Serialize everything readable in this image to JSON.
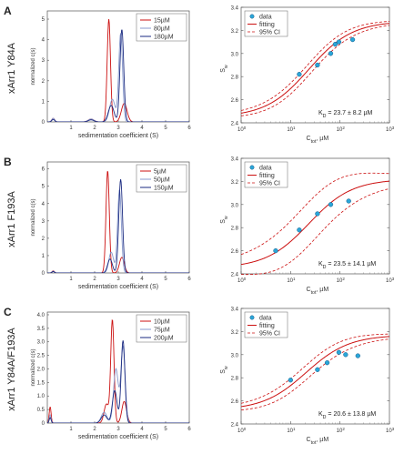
{
  "panels": [
    {
      "letter": "A",
      "mutant_label": "xArr1 Y84A",
      "c_s": {
        "ylabel": "normalized c(s)",
        "xlabel": "sedimentation coefficient (S)",
        "x_ticks": [
          "1",
          "2",
          "3",
          "4",
          "5",
          "6"
        ],
        "y_ticks": [
          "0",
          "1",
          "2",
          "3",
          "4",
          "5"
        ],
        "xlim": [
          0,
          6
        ],
        "ylim": [
          0,
          5.4
        ],
        "legend": [
          "15µM",
          "80µM",
          "180µM"
        ],
        "series": [
          {
            "name": "15µM",
            "color": "#cc1111",
            "peaks": [
              [
                0.25,
                0.18,
                0.06
              ],
              [
                1.85,
                0.14,
                0.12
              ],
              [
                2.6,
                5.0,
                0.07
              ],
              [
                3.25,
                0.9,
                0.12
              ]
            ]
          },
          {
            "name": "80µM",
            "color": "#8899cc",
            "peaks": [
              [
                0.25,
                0.18,
                0.06
              ],
              [
                1.85,
                0.14,
                0.12
              ],
              [
                2.75,
                1.1,
                0.12
              ],
              [
                3.1,
                4.3,
                0.08
              ]
            ]
          },
          {
            "name": "180µM",
            "color": "#1a2a80",
            "peaks": [
              [
                0.25,
                0.12,
                0.06
              ],
              [
                1.85,
                0.1,
                0.12
              ],
              [
                2.7,
                0.8,
                0.12
              ],
              [
                3.15,
                4.5,
                0.08
              ]
            ]
          }
        ]
      },
      "sw": {
        "ylabel": "S_w",
        "xlabel": "C_tot, µM",
        "y_ticks": [
          "2.4",
          "2.6",
          "2.8",
          "3.0",
          "3.2",
          "3.4"
        ],
        "x_ticks": [
          "10",
          "10",
          "10",
          "10"
        ],
        "x_exps": [
          "0",
          "1",
          "2",
          "3"
        ],
        "ylim": [
          2.4,
          3.4
        ],
        "legend": [
          "data",
          "fitting",
          "95% CI"
        ],
        "annotation": "K_D = 23.7 ± 8.2 µM",
        "fit": {
          "low": 2.45,
          "high": 3.28,
          "kd": 23.7,
          "ci_spread": 0.04
        },
        "points": [
          [
            15,
            2.82
          ],
          [
            35,
            2.9
          ],
          [
            65,
            3.0
          ],
          [
            80,
            3.08
          ],
          [
            95,
            3.1
          ],
          [
            180,
            3.12
          ]
        ]
      }
    },
    {
      "letter": "B",
      "mutant_label": "xArr1 F193A",
      "c_s": {
        "ylabel": "normalized c(s)",
        "xlabel": "sedimentation coefficient (S)",
        "x_ticks": [
          "1",
          "2",
          "3",
          "4",
          "5",
          "6"
        ],
        "y_ticks": [
          "0",
          "1",
          "2",
          "3",
          "4",
          "5",
          "6"
        ],
        "xlim": [
          0,
          6
        ],
        "ylim": [
          0,
          6.4
        ],
        "legend": [
          "5µM",
          "50µM",
          "150µM"
        ],
        "series": [
          {
            "name": "5µM",
            "color": "#cc1111",
            "peaks": [
              [
                0.25,
                0.12,
                0.05
              ],
              [
                2.55,
                5.9,
                0.07
              ],
              [
                3.15,
                0.9,
                0.1
              ]
            ]
          },
          {
            "name": "50µM",
            "color": "#8899cc",
            "peaks": [
              [
                0.25,
                0.1,
                0.05
              ],
              [
                2.7,
                1.2,
                0.1
              ],
              [
                3.05,
                4.8,
                0.08
              ]
            ]
          },
          {
            "name": "150µM",
            "color": "#1a2a80",
            "peaks": [
              [
                0.25,
                0.08,
                0.05
              ],
              [
                2.65,
                0.8,
                0.1
              ],
              [
                3.1,
                5.4,
                0.08
              ]
            ]
          }
        ]
      },
      "sw": {
        "ylabel": "S_w",
        "xlabel": "C_tot, µM",
        "y_ticks": [
          "2.4",
          "2.6",
          "2.8",
          "3.0",
          "3.2",
          "3.4"
        ],
        "x_ticks": [
          "10",
          "10",
          "10",
          "10"
        ],
        "x_exps": [
          "0",
          "1",
          "2",
          "3"
        ],
        "ylim": [
          2.4,
          3.4
        ],
        "legend": [
          "data",
          "fitting",
          "95% CI"
        ],
        "annotation": "K_D = 23.5 ± 14.1 µM",
        "fit": {
          "low": 2.45,
          "high": 3.22,
          "kd": 23.5,
          "ci_spread": 0.15
        },
        "points": [
          [
            5,
            2.6
          ],
          [
            15,
            2.78
          ],
          [
            35,
            2.92
          ],
          [
            65,
            3.0
          ],
          [
            150,
            3.03
          ]
        ]
      }
    },
    {
      "letter": "C",
      "mutant_label": "xArr1 Y84A/F193A",
      "c_s": {
        "ylabel": "normalized c(s)",
        "xlabel": "sedimentation coefficient (S)",
        "x_ticks": [
          "1",
          "2",
          "3",
          "4",
          "5",
          "6"
        ],
        "y_ticks": [
          "0",
          "0.5",
          "1.0",
          "1.5",
          "2.0",
          "2.5",
          "3.0",
          "3.5",
          "4.0"
        ],
        "xlim": [
          0,
          6
        ],
        "ylim": [
          0,
          4.1
        ],
        "legend": [
          "10µM",
          "75µM",
          "200µM"
        ],
        "series": [
          {
            "name": "10µM",
            "color": "#cc1111",
            "peaks": [
              [
                0.12,
                0.6,
                0.04
              ],
              [
                2.5,
                0.7,
                0.1
              ],
              [
                2.75,
                3.8,
                0.07
              ],
              [
                3.25,
                0.8,
                0.1
              ]
            ]
          },
          {
            "name": "75µM",
            "color": "#8899cc",
            "peaks": [
              [
                0.12,
                0.3,
                0.04
              ],
              [
                2.4,
                0.4,
                0.12
              ],
              [
                2.9,
                2.0,
                0.1
              ],
              [
                3.2,
                2.8,
                0.09
              ]
            ]
          },
          {
            "name": "200µM",
            "color": "#1a2a80",
            "peaks": [
              [
                0.12,
                0.2,
                0.04
              ],
              [
                2.4,
                0.3,
                0.12
              ],
              [
                2.85,
                1.2,
                0.1
              ],
              [
                3.2,
                3.05,
                0.08
              ]
            ]
          }
        ]
      },
      "sw": {
        "ylabel": "S_w",
        "xlabel": "C_tot, µM",
        "y_ticks": [
          "2.4",
          "2.6",
          "2.8",
          "3.0",
          "3.2",
          "3.4"
        ],
        "x_ticks": [
          "10",
          "10",
          "10",
          "10"
        ],
        "x_exps": [
          "0",
          "1",
          "2",
          "3"
        ],
        "ylim": [
          2.4,
          3.4
        ],
        "legend": [
          "data",
          "fitting",
          "95% CI"
        ],
        "annotation": "K_D = 20.6 ± 13.8 µM",
        "fit": {
          "low": 2.52,
          "high": 3.17,
          "kd": 20.6,
          "ci_spread": 0.05
        },
        "points": [
          [
            10,
            2.78
          ],
          [
            35,
            2.87
          ],
          [
            55,
            2.93
          ],
          [
            95,
            3.02
          ],
          [
            130,
            3.0
          ],
          [
            230,
            2.99
          ]
        ]
      }
    }
  ],
  "chart_data": [
    {
      "type": "line",
      "panel": "A",
      "xlabel": "sedimentation coefficient (S)",
      "ylabel": "normalized c(s)",
      "xlim": [
        0,
        6
      ],
      "ylim": [
        0,
        5.4
      ],
      "series": [
        {
          "name": "15µM",
          "peak_s": 2.6,
          "peak_value": 5.0
        },
        {
          "name": "80µM",
          "peak_s": 3.1,
          "peak_value": 4.3
        },
        {
          "name": "180µM",
          "peak_s": 3.15,
          "peak_value": 4.5
        }
      ]
    },
    {
      "type": "scatter",
      "panel": "A",
      "xlabel": "C_tot, µM",
      "ylabel": "S_w",
      "xscale": "log",
      "xlim": [
        1,
        1000
      ],
      "ylim": [
        2.4,
        3.4
      ],
      "x": [
        15,
        35,
        65,
        80,
        95,
        180
      ],
      "y": [
        2.82,
        2.9,
        3.0,
        3.08,
        3.1,
        3.12
      ],
      "kd": "23.7 ± 8.2 µM"
    },
    {
      "type": "line",
      "panel": "B",
      "xlabel": "sedimentation coefficient (S)",
      "ylabel": "normalized c(s)",
      "xlim": [
        0,
        6
      ],
      "ylim": [
        0,
        6.4
      ],
      "series": [
        {
          "name": "5µM",
          "peak_s": 2.55,
          "peak_value": 5.9
        },
        {
          "name": "50µM",
          "peak_s": 3.05,
          "peak_value": 4.8
        },
        {
          "name": "150µM",
          "peak_s": 3.1,
          "peak_value": 5.4
        }
      ]
    },
    {
      "type": "scatter",
      "panel": "B",
      "xlabel": "C_tot, µM",
      "ylabel": "S_w",
      "xscale": "log",
      "xlim": [
        1,
        1000
      ],
      "ylim": [
        2.4,
        3.4
      ],
      "x": [
        5,
        15,
        35,
        65,
        150
      ],
      "y": [
        2.6,
        2.78,
        2.92,
        3.0,
        3.03
      ],
      "kd": "23.5 ± 14.1 µM"
    },
    {
      "type": "line",
      "panel": "C",
      "xlabel": "sedimentation coefficient (S)",
      "ylabel": "normalized c(s)",
      "xlim": [
        0,
        6
      ],
      "ylim": [
        0,
        4.1
      ],
      "series": [
        {
          "name": "10µM",
          "peak_s": 2.75,
          "peak_value": 3.8
        },
        {
          "name": "75µM",
          "peak_s": 3.2,
          "peak_value": 2.8
        },
        {
          "name": "200µM",
          "peak_s": 3.2,
          "peak_value": 3.05
        }
      ]
    },
    {
      "type": "scatter",
      "panel": "C",
      "xlabel": "C_tot, µM",
      "ylabel": "S_w",
      "xscale": "log",
      "xlim": [
        1,
        1000
      ],
      "ylim": [
        2.4,
        3.4
      ],
      "x": [
        10,
        35,
        55,
        95,
        130,
        230
      ],
      "y": [
        2.78,
        2.87,
        2.93,
        3.02,
        3.0,
        2.99
      ],
      "kd": "20.6 ± 13.8 µM"
    }
  ]
}
